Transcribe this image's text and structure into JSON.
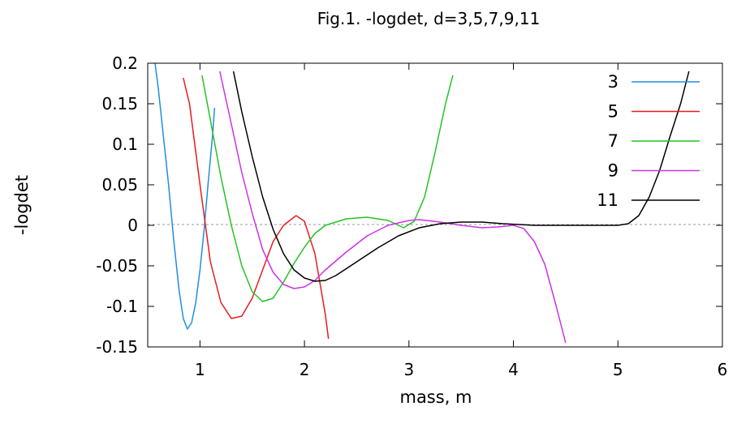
{
  "chart_data": {
    "type": "line",
    "title": "Fig.1. -logdet, d=3,5,7,9,11",
    "xlabel": "mass, m",
    "ylabel": "-logdet",
    "xlim": [
      0.5,
      6
    ],
    "ylim": [
      -0.15,
      0.2
    ],
    "xticks": [
      1,
      2,
      3,
      4,
      5,
      6
    ],
    "yticks": [
      -0.15,
      -0.1,
      -0.05,
      0,
      0.05,
      0.1,
      0.15,
      0.2
    ],
    "ytick_labels": [
      "-0.15",
      "-0.1",
      "-0.05",
      "0",
      "0.05",
      "0.1",
      "0.15",
      "0.2"
    ],
    "zero_line": true,
    "legend_position": "top-right",
    "series": [
      {
        "name": "3",
        "color": "#1f8fe0",
        "points": [
          [
            0.57,
            0.2
          ],
          [
            0.6,
            0.17
          ],
          [
            0.65,
            0.11
          ],
          [
            0.7,
            0.05
          ],
          [
            0.75,
            -0.02
          ],
          [
            0.8,
            -0.08
          ],
          [
            0.84,
            -0.115
          ],
          [
            0.88,
            -0.128
          ],
          [
            0.92,
            -0.12
          ],
          [
            0.96,
            -0.095
          ],
          [
            1.0,
            -0.055
          ],
          [
            1.04,
            -0.005
          ],
          [
            1.08,
            0.055
          ],
          [
            1.12,
            0.11
          ],
          [
            1.14,
            0.145
          ]
        ]
      },
      {
        "name": "5",
        "color": "#e81c1c",
        "points": [
          [
            0.84,
            0.182
          ],
          [
            0.9,
            0.15
          ],
          [
            1.0,
            0.05
          ],
          [
            1.1,
            -0.045
          ],
          [
            1.2,
            -0.095
          ],
          [
            1.3,
            -0.115
          ],
          [
            1.4,
            -0.112
          ],
          [
            1.5,
            -0.09
          ],
          [
            1.6,
            -0.055
          ],
          [
            1.7,
            -0.02
          ],
          [
            1.8,
            0.0
          ],
          [
            1.92,
            0.012
          ],
          [
            2.0,
            0.005
          ],
          [
            2.1,
            -0.035
          ],
          [
            2.2,
            -0.11
          ],
          [
            2.23,
            -0.14
          ]
        ]
      },
      {
        "name": "7",
        "color": "#22c322",
        "points": [
          [
            1.02,
            0.185
          ],
          [
            1.1,
            0.13
          ],
          [
            1.2,
            0.06
          ],
          [
            1.3,
            -0.0
          ],
          [
            1.4,
            -0.05
          ],
          [
            1.5,
            -0.082
          ],
          [
            1.6,
            -0.094
          ],
          [
            1.7,
            -0.09
          ],
          [
            1.8,
            -0.07
          ],
          [
            1.9,
            -0.047
          ],
          [
            2.0,
            -0.027
          ],
          [
            2.1,
            -0.01
          ],
          [
            2.2,
            0.0
          ],
          [
            2.4,
            0.008
          ],
          [
            2.6,
            0.01
          ],
          [
            2.8,
            0.006
          ],
          [
            2.95,
            -0.003
          ],
          [
            3.05,
            0.005
          ],
          [
            3.15,
            0.035
          ],
          [
            3.25,
            0.09
          ],
          [
            3.35,
            0.15
          ],
          [
            3.42,
            0.185
          ]
        ]
      },
      {
        "name": "9",
        "color": "#cc33e6",
        "points": [
          [
            1.19,
            0.19
          ],
          [
            1.3,
            0.125
          ],
          [
            1.4,
            0.065
          ],
          [
            1.5,
            0.015
          ],
          [
            1.6,
            -0.03
          ],
          [
            1.7,
            -0.058
          ],
          [
            1.8,
            -0.073
          ],
          [
            1.9,
            -0.078
          ],
          [
            2.0,
            -0.076
          ],
          [
            2.1,
            -0.068
          ],
          [
            2.2,
            -0.055
          ],
          [
            2.4,
            -0.033
          ],
          [
            2.6,
            -0.013
          ],
          [
            2.8,
            0.0
          ],
          [
            3.0,
            0.006
          ],
          [
            3.1,
            0.007
          ],
          [
            3.3,
            0.004
          ],
          [
            3.5,
            0.0
          ],
          [
            3.7,
            -0.003
          ],
          [
            3.85,
            -0.002
          ],
          [
            4.0,
            0.0
          ],
          [
            4.1,
            -0.004
          ],
          [
            4.2,
            -0.02
          ],
          [
            4.3,
            -0.048
          ],
          [
            4.4,
            -0.095
          ],
          [
            4.5,
            -0.145
          ]
        ]
      },
      {
        "name": "11",
        "color": "#000000",
        "points": [
          [
            1.32,
            0.19
          ],
          [
            1.4,
            0.14
          ],
          [
            1.5,
            0.085
          ],
          [
            1.6,
            0.035
          ],
          [
            1.7,
            -0.005
          ],
          [
            1.8,
            -0.035
          ],
          [
            1.9,
            -0.055
          ],
          [
            2.0,
            -0.065
          ],
          [
            2.1,
            -0.069
          ],
          [
            2.2,
            -0.068
          ],
          [
            2.3,
            -0.062
          ],
          [
            2.5,
            -0.045
          ],
          [
            2.7,
            -0.028
          ],
          [
            2.9,
            -0.013
          ],
          [
            3.1,
            -0.003
          ],
          [
            3.3,
            0.002
          ],
          [
            3.5,
            0.004
          ],
          [
            3.7,
            0.004
          ],
          [
            3.9,
            0.002
          ],
          [
            4.2,
            0.0
          ],
          [
            4.6,
            0.0
          ],
          [
            5.0,
            0.0
          ],
          [
            5.1,
            0.002
          ],
          [
            5.2,
            0.012
          ],
          [
            5.3,
            0.035
          ],
          [
            5.4,
            0.068
          ],
          [
            5.5,
            0.11
          ],
          [
            5.6,
            0.15
          ],
          [
            5.68,
            0.19
          ]
        ]
      }
    ]
  }
}
